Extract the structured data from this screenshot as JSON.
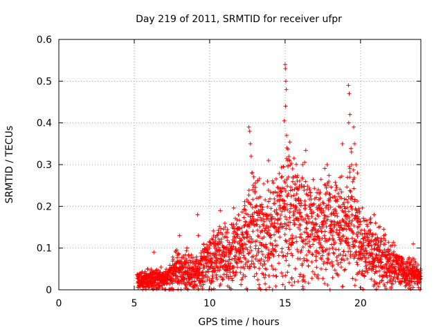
{
  "chart_data": {
    "type": "scatter",
    "title": "Day 219 of 2011, SRMTID for receiver ufpr",
    "xlabel": "GPS time / hours",
    "ylabel": "SRMTID / TECUs",
    "xlim": [
      0,
      24
    ],
    "ylim": [
      0,
      0.6
    ],
    "xticks": [
      0,
      5,
      10,
      15,
      20
    ],
    "yticks": [
      0,
      0.1,
      0.2,
      0.3,
      0.4,
      0.5,
      0.6
    ],
    "grid": true,
    "marker": "+",
    "series": [
      {
        "name": "SRMTID",
        "color": "#ff0000",
        "profile": [
          {
            "x": 5.2,
            "y": 0.02
          },
          {
            "x": 6.0,
            "y": 0.025
          },
          {
            "x": 7.0,
            "y": 0.025
          },
          {
            "x": 7.8,
            "y": 0.05
          },
          {
            "x": 8.5,
            "y": 0.045
          },
          {
            "x": 9.2,
            "y": 0.04
          },
          {
            "x": 10.0,
            "y": 0.07
          },
          {
            "x": 11.0,
            "y": 0.08
          },
          {
            "x": 12.0,
            "y": 0.1
          },
          {
            "x": 12.5,
            "y": 0.13
          },
          {
            "x": 13.0,
            "y": 0.15
          },
          {
            "x": 14.0,
            "y": 0.13
          },
          {
            "x": 15.0,
            "y": 0.2
          },
          {
            "x": 16.0,
            "y": 0.17
          },
          {
            "x": 17.0,
            "y": 0.14
          },
          {
            "x": 18.0,
            "y": 0.15
          },
          {
            "x": 19.0,
            "y": 0.14
          },
          {
            "x": 19.5,
            "y": 0.17
          },
          {
            "x": 20.0,
            "y": 0.1
          },
          {
            "x": 21.0,
            "y": 0.08
          },
          {
            "x": 22.0,
            "y": 0.06
          },
          {
            "x": 23.0,
            "y": 0.04
          },
          {
            "x": 24.0,
            "y": 0.03
          }
        ],
        "highlights": [
          {
            "x": 9.2,
            "y": 0.18
          },
          {
            "x": 9.25,
            "y": 0.13
          },
          {
            "x": 10.7,
            "y": 0.19
          },
          {
            "x": 12.6,
            "y": 0.39
          },
          {
            "x": 12.65,
            "y": 0.38
          },
          {
            "x": 12.7,
            "y": 0.35
          },
          {
            "x": 12.75,
            "y": 0.32
          },
          {
            "x": 12.8,
            "y": 0.28
          },
          {
            "x": 12.85,
            "y": 0.24
          },
          {
            "x": 13.9,
            "y": 0.31
          },
          {
            "x": 15.0,
            "y": 0.54
          },
          {
            "x": 15.02,
            "y": 0.53
          },
          {
            "x": 15.05,
            "y": 0.5
          },
          {
            "x": 15.08,
            "y": 0.48
          },
          {
            "x": 15.03,
            "y": 0.44
          },
          {
            "x": 15.1,
            "y": 0.37
          },
          {
            "x": 15.12,
            "y": 0.34
          },
          {
            "x": 15.15,
            "y": 0.31
          },
          {
            "x": 15.5,
            "y": 0.29
          },
          {
            "x": 17.2,
            "y": 0.24
          },
          {
            "x": 17.9,
            "y": 0.26
          },
          {
            "x": 18.8,
            "y": 0.35
          },
          {
            "x": 19.2,
            "y": 0.49
          },
          {
            "x": 19.25,
            "y": 0.47
          },
          {
            "x": 19.3,
            "y": 0.42
          },
          {
            "x": 19.22,
            "y": 0.4
          },
          {
            "x": 19.55,
            "y": 0.39
          },
          {
            "x": 19.6,
            "y": 0.35
          },
          {
            "x": 19.4,
            "y": 0.33
          },
          {
            "x": 19.7,
            "y": 0.3
          },
          {
            "x": 19.8,
            "y": 0.28
          },
          {
            "x": 19.3,
            "y": 0.27
          },
          {
            "x": 20.9,
            "y": 0.18
          },
          {
            "x": 21.0,
            "y": 0.16
          },
          {
            "x": 23.5,
            "y": 0.11
          },
          {
            "x": 12.5,
            "y": 0.0
          },
          {
            "x": 5.4,
            "y": 0.04
          },
          {
            "x": 6.3,
            "y": 0.09
          },
          {
            "x": 8.0,
            "y": 0.13
          }
        ]
      }
    ]
  }
}
